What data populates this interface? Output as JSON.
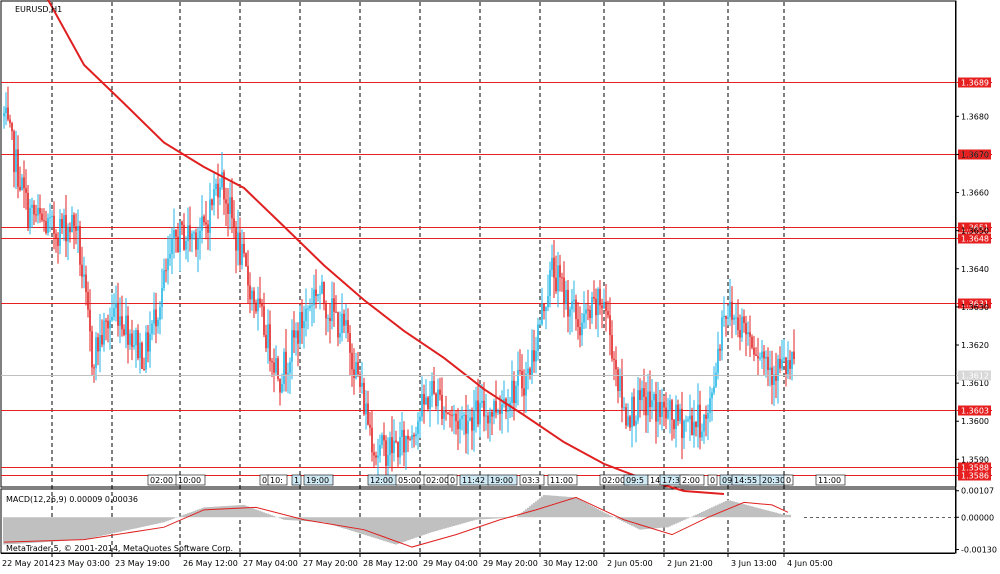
{
  "window": {
    "symbol_title": "EURUSD,H1",
    "copyright": "MetaTrader 5, © 2001-2014, MetaQuotes Software Corp."
  },
  "colors": {
    "bull": "#1fb6e6",
    "bear": "#e02020",
    "level": "#e62020",
    "ma": "#e02020",
    "macd_hist": "#808080",
    "macd_signal": "#e02020",
    "current_price": "#c0c0c0"
  },
  "chart_data": {
    "type": "candlestick",
    "symbol": "EURUSD",
    "timeframe": "H1",
    "ylim": [
      1.3583,
      1.371
    ],
    "y_ticks": [
      "1.3680",
      "1.3670",
      "1.3660",
      "1.3650",
      "1.3640",
      "1.3630",
      "1.3620",
      "1.3610",
      "1.3600",
      "1.3590"
    ],
    "x_ticks": [
      "22 May 2014",
      "23 May 03:00",
      "23 May 19:00",
      "26 May 12:00",
      "27 May 04:00",
      "27 May 20:00",
      "28 May 12:00",
      "29 May 04:00",
      "29 May 20:00",
      "30 May 12:00",
      "2 Jun 05:00",
      "2 Jun 21:00",
      "3 Jun 13:00",
      "4 Jun 05:00"
    ],
    "current_price": "1.3612",
    "levels": [
      "1.3689",
      "1.3670",
      "1.3651",
      "1.3648",
      "1.3631",
      "1.3603",
      "1.3588",
      "1.3586"
    ],
    "moving_average": {
      "points": [
        {
          "bar": 20,
          "value": 1.37125
        },
        {
          "bar": 40,
          "value": 1.36935
        },
        {
          "bar": 60,
          "value": 1.36834
        },
        {
          "bar": 80,
          "value": 1.36731
        },
        {
          "bar": 100,
          "value": 1.36667
        },
        {
          "bar": 120,
          "value": 1.36612
        },
        {
          "bar": 140,
          "value": 1.36511
        },
        {
          "bar": 160,
          "value": 1.36409
        },
        {
          "bar": 180,
          "value": 1.36318
        },
        {
          "bar": 200,
          "value": 1.36237
        },
        {
          "bar": 220,
          "value": 1.36166
        },
        {
          "bar": 240,
          "value": 1.36084
        },
        {
          "bar": 260,
          "value": 1.36016
        },
        {
          "bar": 280,
          "value": 1.35945
        },
        {
          "bar": 300,
          "value": 1.35888
        },
        {
          "bar": 320,
          "value": 1.35848
        },
        {
          "bar": 340,
          "value": 1.35817
        },
        {
          "bar": 360,
          "value": 1.35809
        }
      ]
    },
    "price_path": [
      {
        "bar": 0,
        "value": 1.368
      },
      {
        "bar": 12,
        "value": 1.3655
      },
      {
        "bar": 24,
        "value": 1.365
      },
      {
        "bar": 36,
        "value": 1.3652
      },
      {
        "bar": 44,
        "value": 1.3617
      },
      {
        "bar": 56,
        "value": 1.363
      },
      {
        "bar": 70,
        "value": 1.3617
      },
      {
        "bar": 86,
        "value": 1.3648
      },
      {
        "bar": 100,
        "value": 1.365
      },
      {
        "bar": 108,
        "value": 1.3665
      },
      {
        "bar": 120,
        "value": 1.364
      },
      {
        "bar": 138,
        "value": 1.3612
      },
      {
        "bar": 156,
        "value": 1.3635
      },
      {
        "bar": 172,
        "value": 1.3622
      },
      {
        "bar": 186,
        "value": 1.3592
      },
      {
        "bar": 200,
        "value": 1.3594
      },
      {
        "bar": 214,
        "value": 1.3608
      },
      {
        "bar": 226,
        "value": 1.36
      },
      {
        "bar": 244,
        "value": 1.3603
      },
      {
        "bar": 262,
        "value": 1.3612
      },
      {
        "bar": 274,
        "value": 1.364
      },
      {
        "bar": 288,
        "value": 1.3625
      },
      {
        "bar": 300,
        "value": 1.3632
      },
      {
        "bar": 310,
        "value": 1.3602
      },
      {
        "bar": 322,
        "value": 1.3605
      },
      {
        "bar": 336,
        "value": 1.36
      },
      {
        "bar": 352,
        "value": 1.36
      },
      {
        "bar": 360,
        "value": 1.363
      },
      {
        "bar": 370,
        "value": 1.3625
      },
      {
        "bar": 384,
        "value": 1.3614
      }
    ],
    "time_tags": [
      "02:00",
      "10:00",
      "0",
      "10:",
      "1",
      "19:00",
      "12:00",
      "05:00",
      "02:00",
      "0",
      "11:42",
      "19:00",
      "03:3",
      "11:00",
      "02:00",
      "09:5",
      "14",
      "17:30",
      "2:00",
      "0",
      "09:0",
      "14:55",
      "20:30",
      "0",
      "11:00"
    ]
  },
  "macd": {
    "label": "MACD(12,26,9) 0.00009 0.00036",
    "y_ticks": [
      "0.00107",
      "0.00000",
      "-0.00130"
    ],
    "ylim": [
      -0.0014,
      0.0011
    ],
    "histogram_path": [
      {
        "bar": 0,
        "value": -0.0011
      },
      {
        "bar": 40,
        "value": -0.0009
      },
      {
        "bar": 80,
        "value": -0.0002
      },
      {
        "bar": 100,
        "value": 0.0004
      },
      {
        "bar": 120,
        "value": 0.0005
      },
      {
        "bar": 140,
        "value": -0.0001
      },
      {
        "bar": 160,
        "value": -0.0002
      },
      {
        "bar": 176,
        "value": -0.0006
      },
      {
        "bar": 196,
        "value": -0.0011
      },
      {
        "bar": 214,
        "value": -0.0006
      },
      {
        "bar": 236,
        "value": -0.0001
      },
      {
        "bar": 256,
        "value": 0.0
      },
      {
        "bar": 270,
        "value": 0.0009
      },
      {
        "bar": 286,
        "value": 0.0008
      },
      {
        "bar": 300,
        "value": 0.0002
      },
      {
        "bar": 318,
        "value": -0.0005
      },
      {
        "bar": 332,
        "value": -0.0004
      },
      {
        "bar": 346,
        "value": 0.0001
      },
      {
        "bar": 362,
        "value": 0.0007
      },
      {
        "bar": 376,
        "value": 0.0004
      },
      {
        "bar": 390,
        "value": 0.0001
      }
    ],
    "signal_path": [
      {
        "bar": 0,
        "value": -0.001
      },
      {
        "bar": 40,
        "value": -0.0009
      },
      {
        "bar": 80,
        "value": -0.0004
      },
      {
        "bar": 100,
        "value": 0.0003
      },
      {
        "bar": 126,
        "value": 0.0004
      },
      {
        "bar": 150,
        "value": -0.0001
      },
      {
        "bar": 180,
        "value": -0.0005
      },
      {
        "bar": 204,
        "value": -0.0012
      },
      {
        "bar": 226,
        "value": -0.0007
      },
      {
        "bar": 248,
        "value": -0.0001
      },
      {
        "bar": 266,
        "value": 0.0003
      },
      {
        "bar": 286,
        "value": 0.0008
      },
      {
        "bar": 310,
        "value": -0.0001
      },
      {
        "bar": 334,
        "value": -0.0007
      },
      {
        "bar": 352,
        "value": 0.0
      },
      {
        "bar": 370,
        "value": 0.0006
      },
      {
        "bar": 384,
        "value": 0.0005
      },
      {
        "bar": 392,
        "value": 0.0002
      }
    ]
  }
}
